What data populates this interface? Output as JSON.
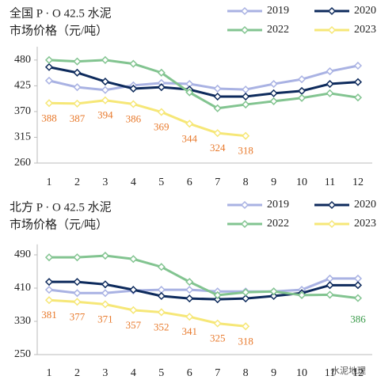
{
  "chart_data": [
    {
      "type": "line",
      "title": [
        "全国 P · O 42.5 水泥",
        "市场价格（元/吨）"
      ],
      "categories": [
        "1",
        "2",
        "3",
        "4",
        "5",
        "6",
        "7",
        "8",
        "9",
        "10",
        "11",
        "12"
      ],
      "ylim": [
        260,
        495
      ],
      "yticks": [
        260,
        315,
        370,
        425,
        480
      ],
      "series": [
        {
          "name": "2019",
          "color": "#a9b2e3",
          "values": [
            436,
            422,
            416,
            426,
            431,
            429,
            419,
            417,
            429,
            439,
            456,
            468
          ]
        },
        {
          "name": "2020",
          "color": "#0d2a5c",
          "values": [
            465,
            453,
            434,
            419,
            422,
            417,
            402,
            402,
            409,
            414,
            429,
            433
          ]
        },
        {
          "name": "2022",
          "color": "#82c490",
          "values": [
            480,
            477,
            480,
            472,
            453,
            411,
            377,
            385,
            392,
            399,
            409,
            400
          ]
        },
        {
          "name": "2023",
          "color": "#f6e777",
          "values": [
            388,
            387,
            394,
            386,
            369,
            344,
            324,
            318,
            null,
            null,
            null,
            null
          ],
          "labels": "all"
        }
      ]
    },
    {
      "type": "line",
      "title": [
        "北方 P · O 42.5 水泥",
        "市场价格（元/吨）"
      ],
      "categories": [
        "1",
        "2",
        "3",
        "4",
        "5",
        "6",
        "7",
        "8",
        "9",
        "10",
        "11",
        "12"
      ],
      "ylim": [
        250,
        500
      ],
      "yticks": [
        250,
        330,
        410,
        490
      ],
      "series": [
        {
          "name": "2019",
          "color": "#a9b2e3",
          "values": [
            406,
            398,
            398,
            404,
            406,
            406,
            402,
            402,
            402,
            406,
            433,
            433
          ]
        },
        {
          "name": "2020",
          "color": "#0d2a5c",
          "values": [
            425,
            425,
            419,
            406,
            391,
            385,
            383,
            385,
            391,
            398,
            417,
            417
          ]
        },
        {
          "name": "2022",
          "color": "#82c490",
          "values": [
            484,
            484,
            488,
            480,
            461,
            425,
            393,
            400,
            402,
            393,
            394,
            386
          ],
          "labels": "last"
        },
        {
          "name": "2023",
          "color": "#f6e777",
          "values": [
            381,
            377,
            371,
            357,
            352,
            341,
            325,
            318,
            null,
            null,
            null,
            null
          ],
          "labels": "all"
        }
      ]
    }
  ],
  "watermark": "水泥地理"
}
